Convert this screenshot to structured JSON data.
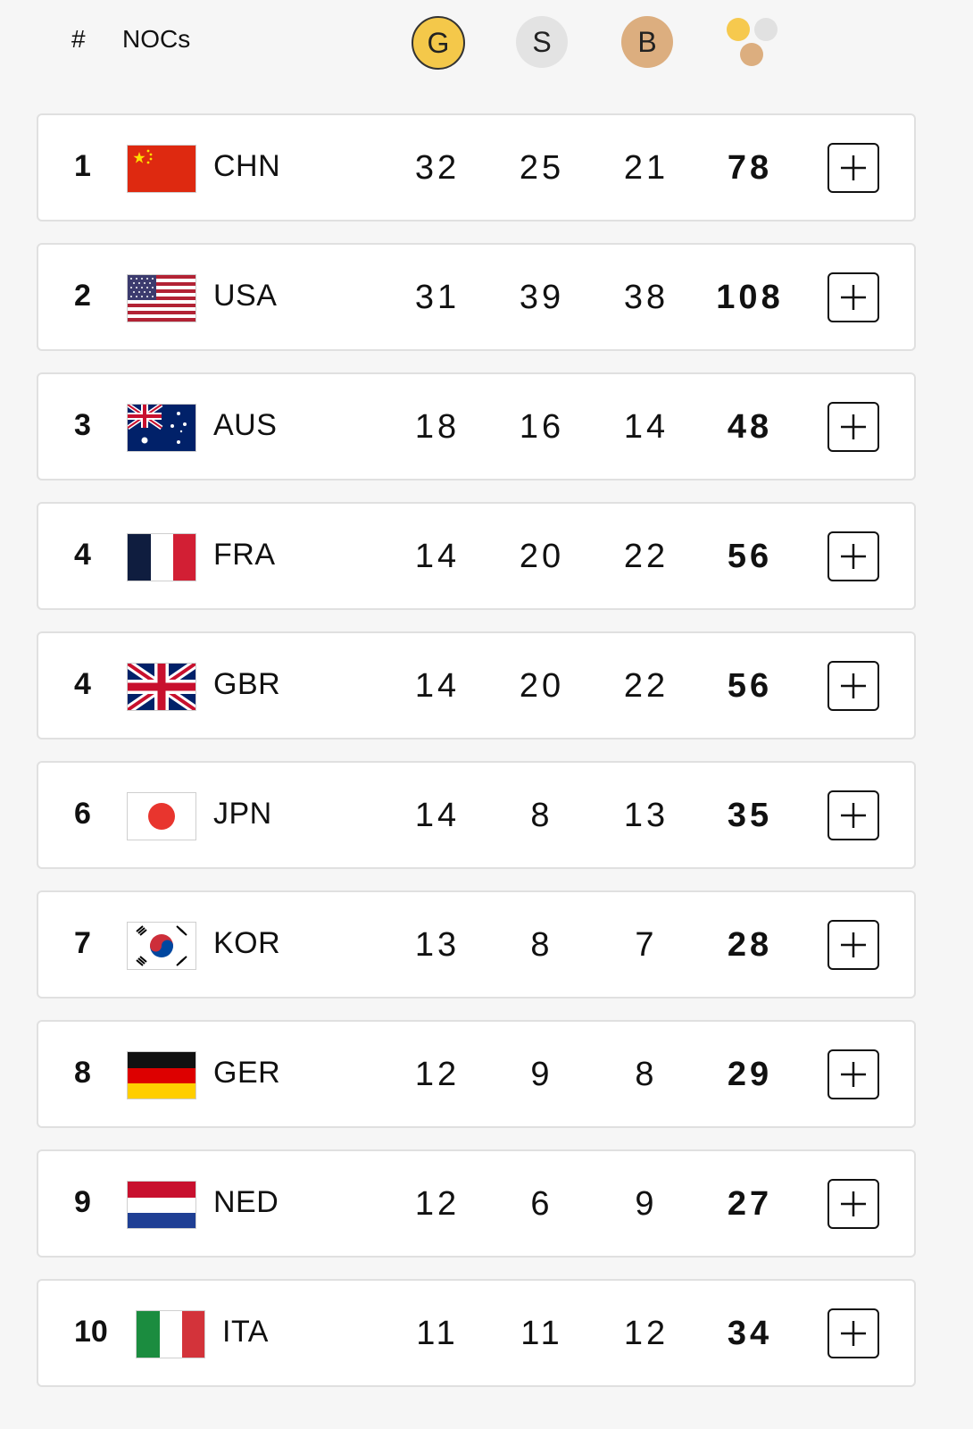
{
  "header": {
    "rank_label": "#",
    "noc_label": "NOCs",
    "gold_label": "G",
    "silver_label": "S",
    "bronze_label": "B",
    "total_icon": "medals-total-icon"
  },
  "colors": {
    "gold": "#f4c84a",
    "silver": "#e3e3e3",
    "bronze": "#dcae7f",
    "row_border": "#e0e0e0"
  },
  "rows": [
    {
      "rank": "1",
      "noc": "CHN",
      "flag": "china-flag-icon",
      "gold": "32",
      "silver": "25",
      "bronze": "21",
      "total": "78"
    },
    {
      "rank": "2",
      "noc": "USA",
      "flag": "usa-flag-icon",
      "gold": "31",
      "silver": "39",
      "bronze": "38",
      "total": "108"
    },
    {
      "rank": "3",
      "noc": "AUS",
      "flag": "australia-flag-icon",
      "gold": "18",
      "silver": "16",
      "bronze": "14",
      "total": "48"
    },
    {
      "rank": "4",
      "noc": "FRA",
      "flag": "france-flag-icon",
      "gold": "14",
      "silver": "20",
      "bronze": "22",
      "total": "56"
    },
    {
      "rank": "4",
      "noc": "GBR",
      "flag": "uk-flag-icon",
      "gold": "14",
      "silver": "20",
      "bronze": "22",
      "total": "56"
    },
    {
      "rank": "6",
      "noc": "JPN",
      "flag": "japan-flag-icon",
      "gold": "14",
      "silver": "8",
      "bronze": "13",
      "total": "35"
    },
    {
      "rank": "7",
      "noc": "KOR",
      "flag": "korea-flag-icon",
      "gold": "13",
      "silver": "8",
      "bronze": "7",
      "total": "28"
    },
    {
      "rank": "8",
      "noc": "GER",
      "flag": "germany-flag-icon",
      "gold": "12",
      "silver": "9",
      "bronze": "8",
      "total": "29"
    },
    {
      "rank": "9",
      "noc": "NED",
      "flag": "netherlands-flag-icon",
      "gold": "12",
      "silver": "6",
      "bronze": "9",
      "total": "27"
    },
    {
      "rank": "10",
      "noc": "ITA",
      "flag": "italy-flag-icon",
      "gold": "11",
      "silver": "11",
      "bronze": "12",
      "total": "34"
    }
  ],
  "expand_icon": "plus-icon"
}
